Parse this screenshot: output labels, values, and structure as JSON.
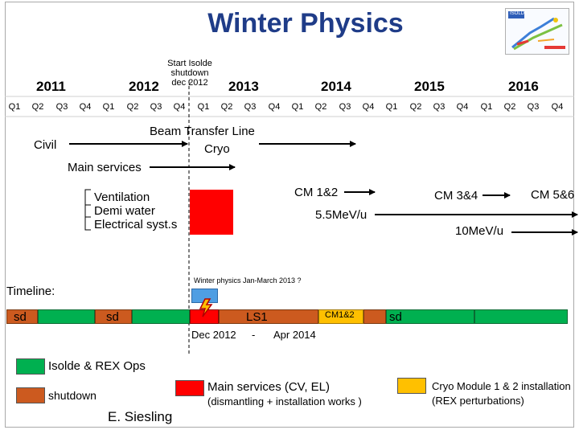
{
  "title": "Winter Physics",
  "logo": {
    "brand_text": "ISOLDE"
  },
  "years": [
    "2011",
    "2012",
    "2013",
    "2014",
    "2015",
    "2016"
  ],
  "quarters": [
    "Q1",
    "Q2",
    "Q3",
    "Q4",
    "Q1",
    "Q2",
    "Q3",
    "Q4",
    "Q1",
    "Q2",
    "Q3",
    "Q4",
    "Q1",
    "Q2",
    "Q3",
    "Q4",
    "Q1",
    "Q2",
    "Q3",
    "Q4",
    "Q1",
    "Q2",
    "Q3",
    "Q4"
  ],
  "shutdown_note": {
    "line1": "Start Isolde",
    "line2": "shutdown",
    "line3": "dec 2012"
  },
  "civil": "Civil",
  "beam_transfer_line": "Beam Transfer Line",
  "cryo": "Cryo",
  "main_services": "Main services",
  "services_list": {
    "ventilation": "Ventilation",
    "demi_water": "Demi water",
    "electrical": "Electrical syst.s"
  },
  "cm12": "CM 1&2",
  "cm34": "CM 3&4",
  "cm56": "CM 5&6",
  "energy_55": "5.5MeV/u",
  "energy_10": "10MeV/u",
  "winter_physics_note": "Winter physics Jan-March 2013 ?",
  "timeline": {
    "label": "Timeline:",
    "sd1": "sd",
    "sd2": "sd",
    "ls1": "LS1",
    "cm12_bar": "CM1&2",
    "sd3": "sd",
    "date_start": "Dec 2012",
    "date_dash": "-",
    "date_end": "Apr 2014"
  },
  "legend": {
    "isolde_ops": "Isolde & REX Ops",
    "shutdown": "shutdown",
    "main_services": "Main services (CV, EL)",
    "main_services_sub": "(dismantling + installation works )",
    "cryo_module": "Cryo Module 1 & 2 installation",
    "cryo_module_sub": "(REX perturbations)"
  },
  "author": "E. Siesling",
  "colors": {
    "title": "#1f3c88",
    "isolde_ops": "#00b050",
    "shutdown": "#cc5a1f",
    "main_services": "#ff0000",
    "cryo_module": "#ffc000",
    "winter_physics_box": "#4f9ee3"
  },
  "icons": {
    "lightning": "lightning-icon"
  }
}
